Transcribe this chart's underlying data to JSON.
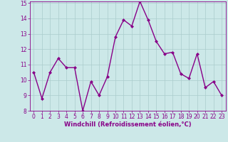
{
  "x": [
    0,
    1,
    2,
    3,
    4,
    5,
    6,
    7,
    8,
    9,
    10,
    11,
    12,
    13,
    14,
    15,
    16,
    17,
    18,
    19,
    20,
    21,
    22,
    23
  ],
  "y": [
    10.5,
    8.8,
    10.5,
    11.4,
    10.8,
    10.8,
    8.0,
    9.9,
    9.0,
    10.2,
    12.8,
    13.9,
    13.5,
    15.1,
    13.9,
    12.5,
    11.7,
    11.8,
    10.4,
    10.1,
    11.7,
    9.5,
    9.9,
    9.0
  ],
  "line_color": "#880088",
  "marker": "D",
  "marker_size": 2.0,
  "bg_color": "#cce8e8",
  "grid_color": "#aacccc",
  "xlabel": "Windchill (Refroidissement éolien,°C)",
  "ylim": [
    8,
    15
  ],
  "xlim": [
    -0.5,
    23.5
  ],
  "yticks": [
    8,
    9,
    10,
    11,
    12,
    13,
    14,
    15
  ],
  "xticks": [
    0,
    1,
    2,
    3,
    4,
    5,
    6,
    7,
    8,
    9,
    10,
    11,
    12,
    13,
    14,
    15,
    16,
    17,
    18,
    19,
    20,
    21,
    22,
    23
  ],
  "tick_label_color": "#880088",
  "xlabel_color": "#880088",
  "xlabel_fontsize": 6.0,
  "tick_fontsize": 5.5,
  "linewidth": 1.0
}
